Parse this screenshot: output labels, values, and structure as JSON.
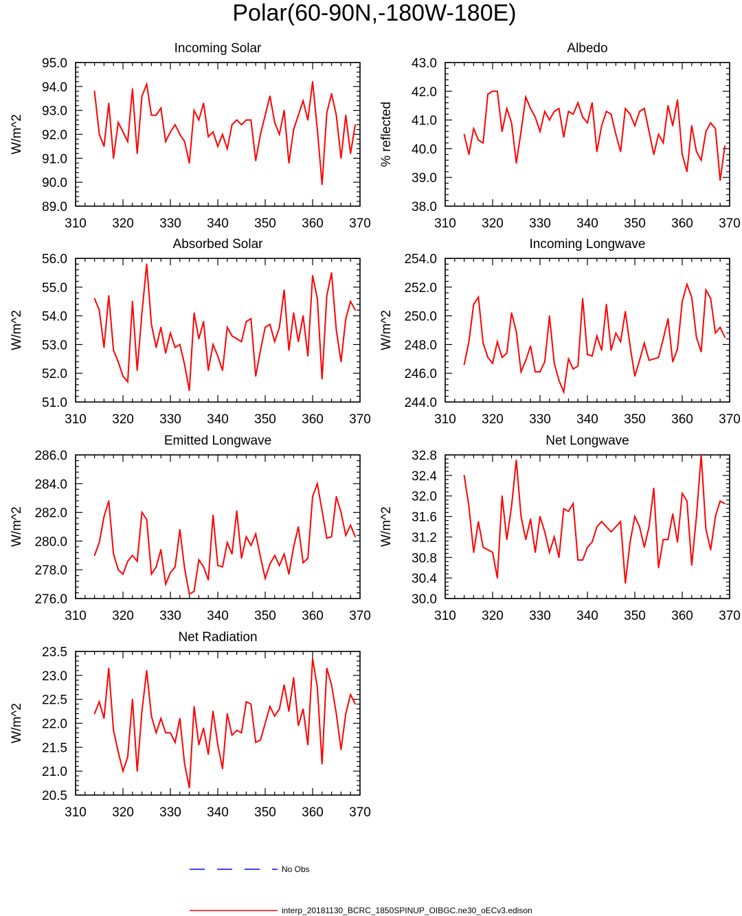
{
  "figure": {
    "title": "Polar(60-90N,-180W-180E)"
  },
  "legend": {
    "obs_label": "No Obs",
    "model_label": "interp_20181130_BCRC_1850SPINUP_OIBGC.ne30_oECv3.edison",
    "obs_color": "#0000ff",
    "model_color": "#ff0000"
  },
  "chart_data": [
    {
      "type": "line",
      "title": "Incoming Solar",
      "xlabel": "",
      "ylabel": "W/m^2",
      "xlim": [
        310,
        370
      ],
      "ylim": [
        89,
        95
      ],
      "xticks": [
        310,
        320,
        330,
        340,
        350,
        360,
        370
      ],
      "yticks": [
        89,
        90,
        91,
        92,
        93,
        94,
        95
      ],
      "ytick_labels": [
        "89.0",
        "90.0",
        "91.0",
        "92.0",
        "93.0",
        "94.0",
        "95.0"
      ],
      "x_start": 314,
      "series": [
        {
          "name": "interp_20181130_BCRC_1850SPINUP_OIBGC.ne30_oECv3.edison",
          "color": "#ff0000",
          "values": [
            93.8,
            92.0,
            91.5,
            93.3,
            91.0,
            92.5,
            92.1,
            91.7,
            93.9,
            91.2,
            93.6,
            94.1,
            92.8,
            92.8,
            93.1,
            91.7,
            92.1,
            92.4,
            92.0,
            91.7,
            90.8,
            93.0,
            92.6,
            93.3,
            91.9,
            92.1,
            91.5,
            92.0,
            91.4,
            92.4,
            92.6,
            92.4,
            92.6,
            92.6,
            90.9,
            92.0,
            92.8,
            93.6,
            92.5,
            92.0,
            93.0,
            90.8,
            92.2,
            92.8,
            93.4,
            92.6,
            94.2,
            92.2,
            89.9,
            92.9,
            93.7,
            92.8,
            91.0,
            92.8,
            91.2,
            92.4
          ]
        }
      ]
    },
    {
      "type": "line",
      "title": "Albedo",
      "xlabel": "",
      "ylabel": "% reflected",
      "xlim": [
        310,
        370
      ],
      "ylim": [
        38,
        43
      ],
      "xticks": [
        310,
        320,
        330,
        340,
        350,
        360,
        370
      ],
      "yticks": [
        38,
        39,
        40,
        41,
        42,
        43
      ],
      "ytick_labels": [
        "38.0",
        "39.0",
        "40.0",
        "41.0",
        "42.0",
        "43.0"
      ],
      "x_start": 314,
      "series": [
        {
          "name": "interp_20181130_BCRC_1850SPINUP_OIBGC.ne30_oECv3.edison",
          "color": "#ff0000",
          "values": [
            40.5,
            39.8,
            40.7,
            40.3,
            40.2,
            41.9,
            42.0,
            42.0,
            40.6,
            41.4,
            40.9,
            39.5,
            40.6,
            41.8,
            41.4,
            41.1,
            40.6,
            41.3,
            41.0,
            41.3,
            41.4,
            40.4,
            41.3,
            41.2,
            41.6,
            41.1,
            40.9,
            41.6,
            39.9,
            40.8,
            41.3,
            41.2,
            40.5,
            39.9,
            41.4,
            41.2,
            40.8,
            41.3,
            41.4,
            40.6,
            39.8,
            40.5,
            40.2,
            41.5,
            40.8,
            41.7,
            39.8,
            39.2,
            40.8,
            39.9,
            39.6,
            40.6,
            40.9,
            40.7,
            38.9,
            40.1
          ]
        }
      ]
    },
    {
      "type": "line",
      "title": "Absorbed Solar",
      "xlabel": "",
      "ylabel": "W/m^2",
      "xlim": [
        310,
        370
      ],
      "ylim": [
        51,
        56
      ],
      "xticks": [
        310,
        320,
        330,
        340,
        350,
        360,
        370
      ],
      "yticks": [
        51,
        52,
        53,
        54,
        55,
        56
      ],
      "ytick_labels": [
        "51.0",
        "52.0",
        "53.0",
        "54.0",
        "55.0",
        "56.0"
      ],
      "x_start": 314,
      "series": [
        {
          "name": "interp_20181130_BCRC_1850SPINUP_OIBGC.ne30_oECv3.edison",
          "color": "#ff0000",
          "values": [
            54.6,
            54.2,
            52.9,
            54.7,
            52.8,
            52.4,
            51.9,
            51.7,
            54.5,
            52.1,
            54.1,
            55.8,
            53.7,
            52.9,
            53.6,
            52.7,
            53.4,
            52.9,
            53.0,
            52.3,
            51.4,
            54.1,
            53.2,
            53.8,
            52.1,
            53.0,
            52.6,
            52.1,
            53.6,
            53.3,
            53.2,
            53.1,
            53.8,
            53.9,
            51.9,
            52.8,
            53.6,
            53.7,
            53.1,
            53.6,
            54.9,
            52.8,
            54.1,
            53.1,
            54.0,
            52.6,
            55.4,
            54.6,
            51.8,
            54.7,
            55.5,
            53.5,
            52.4,
            53.9,
            54.5,
            54.2
          ]
        }
      ]
    },
    {
      "type": "line",
      "title": "Incoming Longwave",
      "xlabel": "",
      "ylabel": "W/m^2",
      "xlim": [
        310,
        370
      ],
      "ylim": [
        244,
        254
      ],
      "xticks": [
        310,
        320,
        330,
        340,
        350,
        360,
        370
      ],
      "yticks": [
        244,
        246,
        248,
        250,
        252,
        254
      ],
      "ytick_labels": [
        "244.0",
        "246.0",
        "248.0",
        "250.0",
        "252.0",
        "254.0"
      ],
      "x_start": 314,
      "series": [
        {
          "name": "interp_20181130_BCRC_1850SPINUP_OIBGC.ne30_oECv3.edison",
          "color": "#ff0000",
          "values": [
            246.6,
            248.2,
            250.8,
            251.3,
            248.1,
            247.1,
            246.7,
            248.2,
            247.1,
            247.4,
            250.2,
            248.9,
            246.1,
            246.9,
            247.9,
            246.1,
            246.1,
            246.8,
            250.0,
            246.7,
            245.5,
            244.7,
            247.0,
            246.3,
            246.5,
            251.2,
            247.3,
            247.2,
            248.6,
            247.6,
            250.8,
            247.6,
            248.8,
            248.2,
            250.3,
            247.9,
            245.8,
            246.9,
            248.1,
            246.9,
            247.0,
            247.1,
            248.4,
            249.8,
            246.8,
            247.7,
            251.0,
            252.2,
            251.3,
            248.5,
            247.5,
            251.8,
            251.2,
            248.8,
            249.2,
            248.5
          ]
        }
      ]
    },
    {
      "type": "line",
      "title": "Emitted Longwave",
      "xlabel": "",
      "ylabel": "W/m^2",
      "xlim": [
        310,
        370
      ],
      "ylim": [
        276,
        286
      ],
      "xticks": [
        310,
        320,
        330,
        340,
        350,
        360,
        370
      ],
      "yticks": [
        276,
        278,
        280,
        282,
        284,
        286
      ],
      "ytick_labels": [
        "276.0",
        "278.0",
        "280.0",
        "282.0",
        "284.0",
        "286.0"
      ],
      "x_start": 314,
      "series": [
        {
          "name": "interp_20181130_BCRC_1850SPINUP_OIBGC.ne30_oECv3.edison",
          "color": "#ff0000",
          "values": [
            279.0,
            279.9,
            281.7,
            282.8,
            279.1,
            278.0,
            277.7,
            278.6,
            279.0,
            278.6,
            282.0,
            281.5,
            277.7,
            278.2,
            279.4,
            277.0,
            277.8,
            278.2,
            280.8,
            278.1,
            276.3,
            276.5,
            278.7,
            278.2,
            277.3,
            281.8,
            278.3,
            278.2,
            279.9,
            279.1,
            282.1,
            278.8,
            280.3,
            279.7,
            280.5,
            278.9,
            277.4,
            278.4,
            279.0,
            278.3,
            279.1,
            277.7,
            279.6,
            281.0,
            278.5,
            278.8,
            283.1,
            284.0,
            282.1,
            280.2,
            280.3,
            283.1,
            282.0,
            280.4,
            281.1,
            280.3
          ]
        }
      ]
    },
    {
      "type": "line",
      "title": "Net Longwave",
      "xlabel": "",
      "ylabel": "W/m^2",
      "xlim": [
        310,
        370
      ],
      "ylim": [
        30.0,
        32.8
      ],
      "xticks": [
        310,
        320,
        330,
        340,
        350,
        360,
        370
      ],
      "yticks": [
        30.0,
        30.4,
        30.8,
        31.2,
        31.6,
        32.0,
        32.4,
        32.8
      ],
      "ytick_labels": [
        "30.0",
        "30.4",
        "30.8",
        "31.2",
        "31.6",
        "32.0",
        "32.4",
        "32.8"
      ],
      "x_start": 314,
      "series": [
        {
          "name": "interp_20181130_BCRC_1850SPINUP_OIBGC.ne30_oECv3.edison",
          "color": "#ff0000",
          "values": [
            32.4,
            31.8,
            30.9,
            31.5,
            31.0,
            30.95,
            30.9,
            30.4,
            32.0,
            31.15,
            31.8,
            32.7,
            31.6,
            31.15,
            31.55,
            30.9,
            31.6,
            31.3,
            30.9,
            31.2,
            30.8,
            31.75,
            31.7,
            31.85,
            30.75,
            30.75,
            31.0,
            31.1,
            31.4,
            31.5,
            31.4,
            31.3,
            31.4,
            31.5,
            30.3,
            31.1,
            31.6,
            31.4,
            31.0,
            31.4,
            32.15,
            30.6,
            31.15,
            31.15,
            31.65,
            31.1,
            32.05,
            31.9,
            30.65,
            31.6,
            32.8,
            31.35,
            30.95,
            31.6,
            31.9,
            31.85
          ]
        }
      ]
    },
    {
      "type": "line",
      "title": "Net Radiation",
      "xlabel": "",
      "ylabel": "W/m^2",
      "xlim": [
        310,
        370
      ],
      "ylim": [
        20.5,
        23.5
      ],
      "xticks": [
        310,
        320,
        330,
        340,
        350,
        360,
        370
      ],
      "yticks": [
        20.5,
        21.0,
        21.5,
        22.0,
        22.5,
        23.0,
        23.5
      ],
      "ytick_labels": [
        "20.5",
        "21.0",
        "21.5",
        "22.0",
        "22.5",
        "23.0",
        "23.5"
      ],
      "x_start": 314,
      "series": [
        {
          "name": "interp_20181130_BCRC_1850SPINUP_OIBGC.ne30_oECv3.edison",
          "color": "#ff0000",
          "values": [
            22.2,
            22.45,
            22.1,
            23.15,
            21.85,
            21.4,
            21.0,
            21.3,
            22.5,
            21.0,
            22.25,
            23.1,
            22.15,
            21.8,
            22.1,
            21.8,
            21.8,
            21.6,
            22.1,
            21.15,
            20.65,
            22.35,
            21.55,
            21.9,
            21.35,
            22.25,
            21.55,
            21.05,
            22.2,
            21.75,
            21.85,
            21.8,
            22.45,
            22.4,
            21.6,
            21.65,
            22.0,
            22.35,
            22.15,
            22.3,
            22.8,
            22.25,
            22.95,
            21.95,
            22.3,
            21.55,
            23.35,
            22.75,
            21.15,
            23.15,
            22.8,
            22.2,
            21.45,
            22.2,
            22.6,
            22.4
          ]
        }
      ]
    }
  ]
}
